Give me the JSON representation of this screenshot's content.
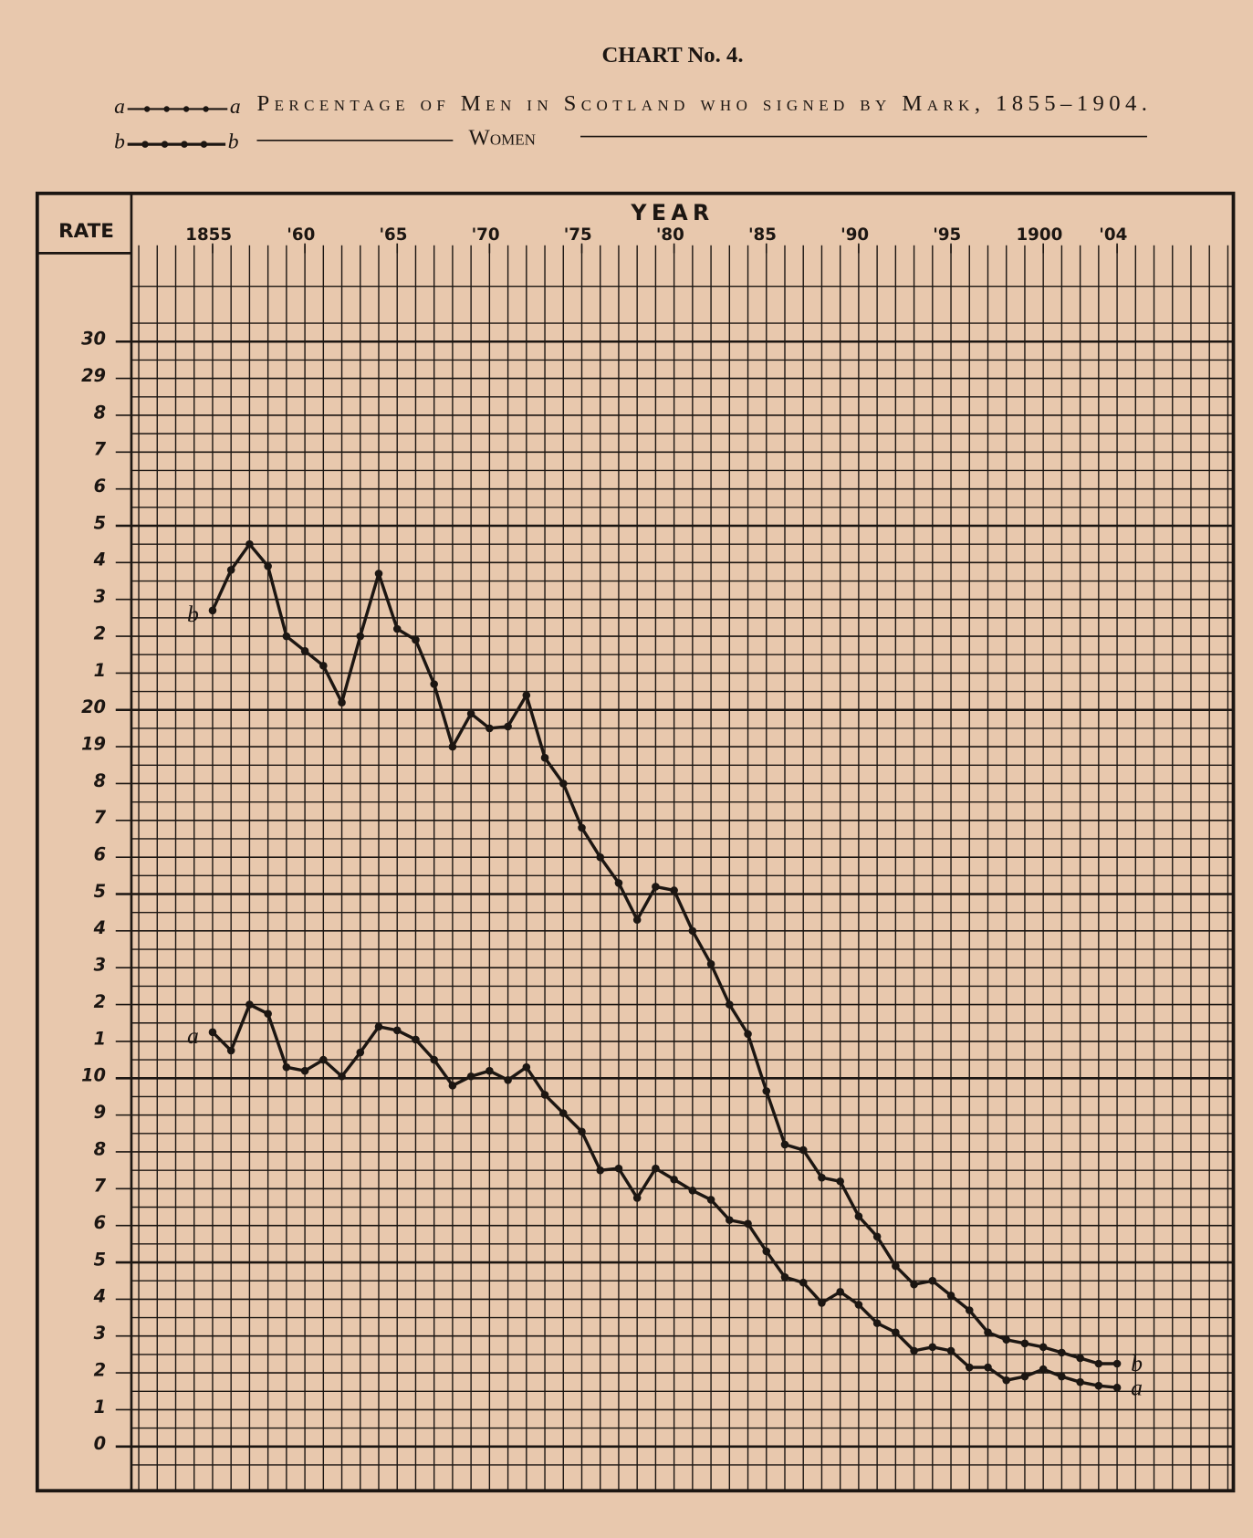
{
  "chart_data": {
    "type": "line",
    "title": "CHART No. 4.",
    "xlabel": "YEAR",
    "ylabel": "RATE",
    "x": [
      1855,
      1856,
      1857,
      1858,
      1859,
      1860,
      1861,
      1862,
      1863,
      1864,
      1865,
      1866,
      1867,
      1868,
      1869,
      1870,
      1871,
      1872,
      1873,
      1874,
      1875,
      1876,
      1877,
      1878,
      1879,
      1880,
      1881,
      1882,
      1883,
      1884,
      1885,
      1886,
      1887,
      1888,
      1889,
      1890,
      1891,
      1892,
      1893,
      1894,
      1895,
      1896,
      1897,
      1898,
      1899,
      1900,
      1901,
      1902,
      1903,
      1904
    ],
    "series": [
      {
        "name": "Percentage of Men in Scotland who signed by Mark, 1855–1904.",
        "marker_label": "a",
        "color": "#1c1612",
        "values": [
          11.25,
          10.75,
          12.0,
          11.75,
          10.3,
          10.2,
          10.5,
          10.05,
          10.7,
          11.4,
          11.3,
          11.05,
          10.5,
          9.8,
          10.05,
          10.2,
          9.95,
          10.3,
          9.55,
          9.05,
          8.55,
          7.5,
          7.55,
          6.75,
          7.55,
          7.25,
          6.95,
          6.7,
          6.15,
          6.05,
          5.3,
          4.6,
          4.45,
          3.9,
          4.2,
          3.85,
          3.35,
          3.1,
          2.6,
          2.7,
          2.6,
          2.15,
          2.15,
          1.8,
          1.9,
          2.1,
          1.9,
          1.75,
          1.65,
          1.6
        ]
      },
      {
        "name": "Women",
        "marker_label": "b",
        "color": "#1c1612",
        "values": [
          22.7,
          23.8,
          24.5,
          23.9,
          22.0,
          21.6,
          21.2,
          20.2,
          22.0,
          23.7,
          22.2,
          21.9,
          20.7,
          19.0,
          19.9,
          19.5,
          19.55,
          20.4,
          18.7,
          18.0,
          16.8,
          16.0,
          15.3,
          14.3,
          15.2,
          15.1,
          14.0,
          13.1,
          12.0,
          11.2,
          9.65,
          8.2,
          8.05,
          7.3,
          7.2,
          6.25,
          5.7,
          4.9,
          4.4,
          4.5,
          4.1,
          3.7,
          3.1,
          2.9,
          2.8,
          2.7,
          2.55,
          2.4,
          2.25,
          2.25
        ]
      }
    ],
    "xlim": [
      1850.6,
      1910.3
    ],
    "ylim": [
      -1.2,
      32.4
    ],
    "xticks": [
      1855,
      {
        "value": 1860,
        "label": "'60"
      },
      {
        "value": 1865,
        "label": "'65"
      },
      {
        "value": 1870,
        "label": "'70"
      },
      {
        "value": 1875,
        "label": "'75"
      },
      {
        "value": 1880,
        "label": "'80"
      },
      {
        "value": 1885,
        "label": "'85"
      },
      {
        "value": 1890,
        "label": "'90"
      },
      {
        "value": 1895,
        "label": "'95"
      },
      1900,
      {
        "value": 1904,
        "label": "'04"
      }
    ],
    "yticks": [
      0,
      {
        "value": 1,
        "label": "1"
      },
      {
        "value": 2,
        "label": "2"
      },
      {
        "value": 3,
        "label": "3"
      },
      {
        "value": 4,
        "label": "4"
      },
      {
        "value": 5,
        "label": "5"
      },
      {
        "value": 6,
        "label": "6"
      },
      {
        "value": 7,
        "label": "7"
      },
      {
        "value": 8,
        "label": "8"
      },
      {
        "value": 9,
        "label": "9"
      },
      10,
      {
        "value": 11,
        "label": "1"
      },
      {
        "value": 12,
        "label": "2"
      },
      {
        "value": 13,
        "label": "3"
      },
      {
        "value": 14,
        "label": "4"
      },
      {
        "value": 15,
        "label": "5"
      },
      {
        "value": 16,
        "label": "6"
      },
      {
        "value": 17,
        "label": "7"
      },
      {
        "value": 18,
        "label": "8"
      },
      19,
      20,
      {
        "value": 21,
        "label": "1"
      },
      {
        "value": 22,
        "label": "2"
      },
      {
        "value": 23,
        "label": "3"
      },
      {
        "value": 24,
        "label": "4"
      },
      {
        "value": 25,
        "label": "5"
      },
      {
        "value": 26,
        "label": "6"
      },
      {
        "value": 27,
        "label": "7"
      },
      {
        "value": 28,
        "label": "8"
      },
      29,
      30
    ],
    "grid": true
  }
}
